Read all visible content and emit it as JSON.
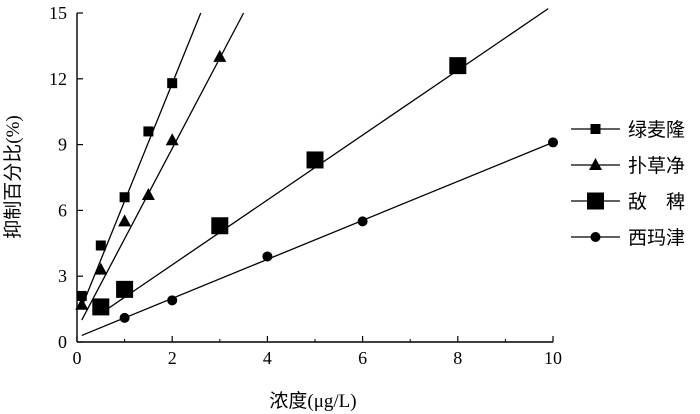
{
  "chart_data": {
    "type": "scatter",
    "xlabel": "浓度(μg/L)",
    "ylabel": "抑制百分比(%)",
    "xlim": [
      0,
      10
    ],
    "ylim": [
      0,
      15
    ],
    "xticks": [
      0,
      2,
      4,
      6,
      8,
      10
    ],
    "yticks": [
      0,
      3,
      6,
      9,
      12,
      15
    ],
    "xtick_labels": [
      "0",
      "2",
      "4",
      "6",
      "8",
      "10"
    ],
    "ytick_labels": [
      "0",
      "3",
      "6",
      "9",
      "12",
      "15"
    ],
    "grid": false,
    "legend_position": "right",
    "series": [
      {
        "name": "绿麦隆",
        "marker": "small-square",
        "x": [
          0.1,
          0.5,
          1.0,
          1.5,
          2.0
        ],
        "y": [
          2.1,
          4.4,
          6.6,
          9.6,
          11.8
        ],
        "fit": [
          [
            0.1,
            1.6
          ],
          [
            2.6,
            15.0
          ]
        ]
      },
      {
        "name": "扑草净",
        "marker": "triangle",
        "x": [
          0.1,
          0.5,
          1.0,
          1.5,
          2.0,
          3.0
        ],
        "y": [
          1.7,
          3.3,
          5.5,
          6.7,
          9.2,
          13.0
        ],
        "fit": [
          [
            0.1,
            1.0
          ],
          [
            3.5,
            15.0
          ]
        ]
      },
      {
        "name": "敌　稗",
        "marker": "large-square",
        "x": [
          0.5,
          1.0,
          3.0,
          5.0,
          8.0
        ],
        "y": [
          1.6,
          2.4,
          5.3,
          8.3,
          12.6
        ],
        "fit": [
          [
            0.5,
            1.3
          ],
          [
            9.9,
            15.2
          ]
        ]
      },
      {
        "name": "西玛津",
        "marker": "circle",
        "x": [
          1.0,
          2.0,
          4.0,
          6.0,
          10.0
        ],
        "y": [
          1.1,
          1.9,
          3.9,
          5.5,
          9.1
        ],
        "fit": [
          [
            0.1,
            0.3
          ],
          [
            10.0,
            9.1
          ]
        ]
      }
    ]
  }
}
